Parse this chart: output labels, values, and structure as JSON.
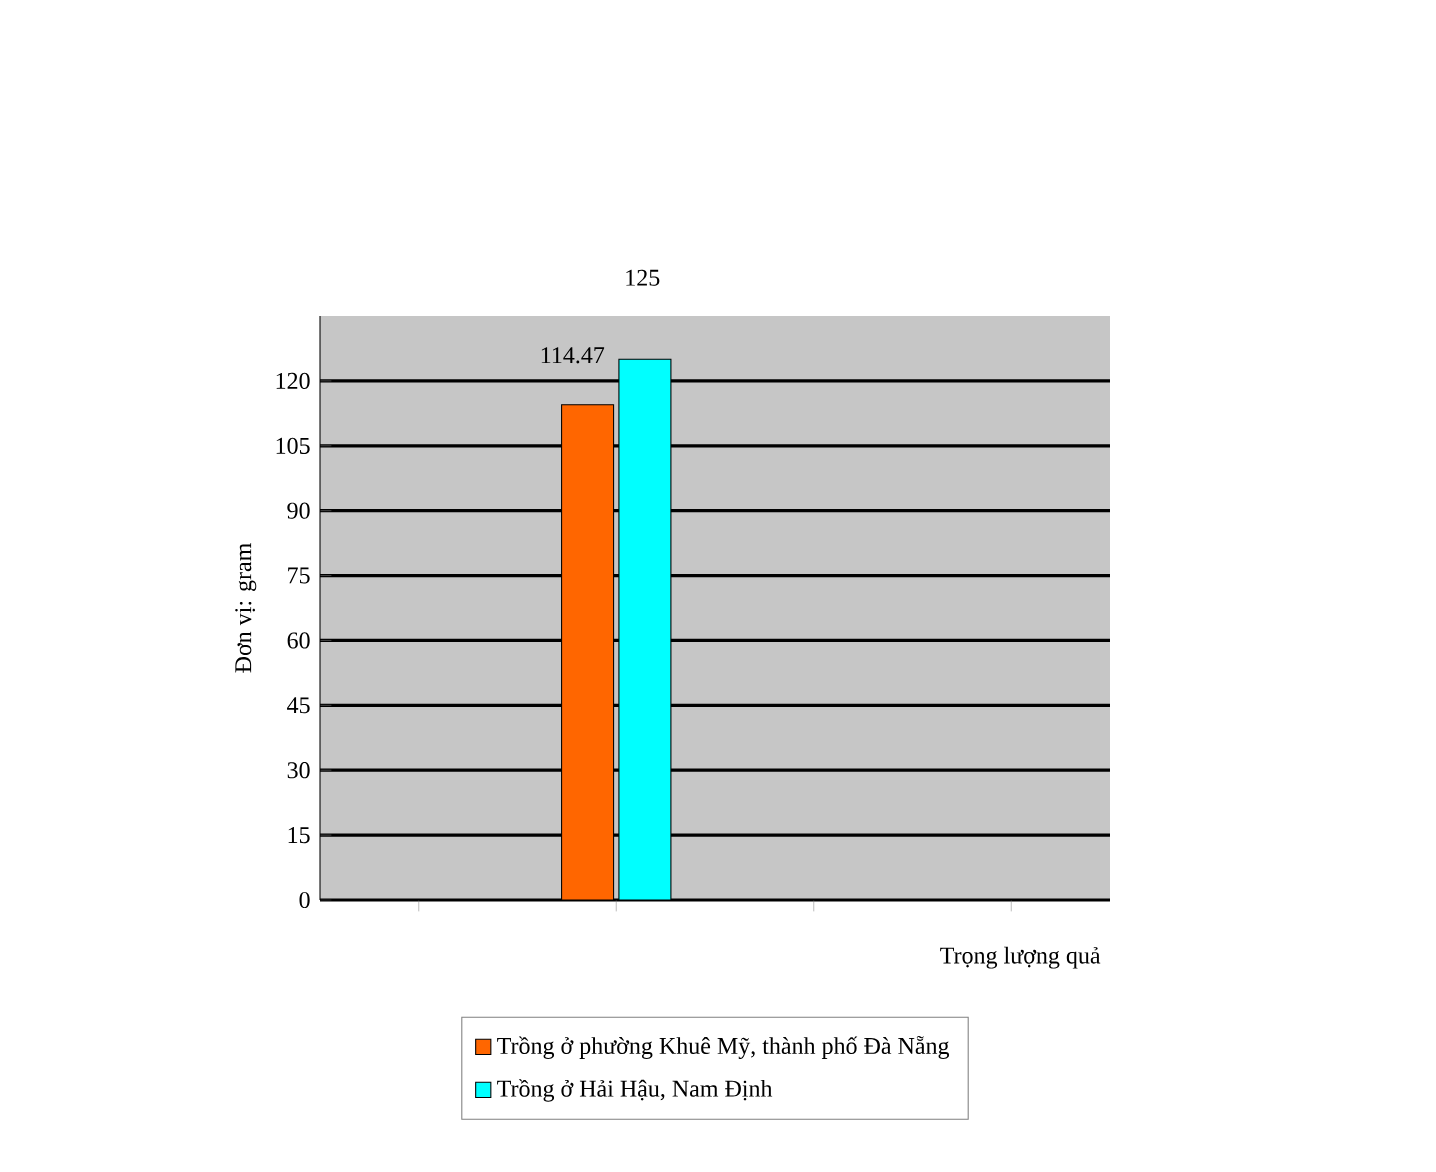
{
  "chart_data": {
    "type": "bar",
    "xlabel": "Trọng lượng quả",
    "ylabel": "Đơn vị: gram",
    "categories": [
      null,
      null,
      null,
      null
    ],
    "series": [
      {
        "name": "Trồng ở phường Khuê Mỹ, thành phố Đà Nẵng",
        "color": "#ff6600",
        "values": [
          null,
          114.47,
          null,
          null
        ]
      },
      {
        "name": "Trồng ở Hải Hậu, Nam Định",
        "color": "#00ffff",
        "values": [
          null,
          125,
          null,
          null
        ]
      }
    ],
    "ylim": [
      0,
      135
    ],
    "yticks": [
      0,
      15,
      30,
      45,
      60,
      75,
      90,
      105,
      120
    ],
    "grid": "y",
    "legend": "bottom",
    "data_labels": true
  }
}
